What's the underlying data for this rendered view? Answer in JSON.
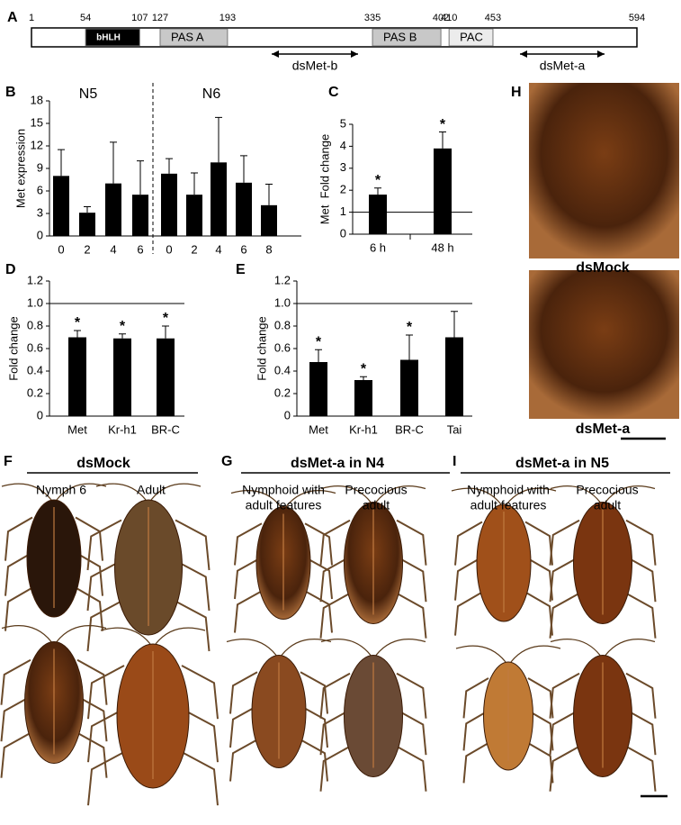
{
  "panels": {
    "A": "A",
    "F": "F",
    "G": "G",
    "H": "H",
    "I": "I"
  },
  "protein": {
    "start": 1,
    "end": 594,
    "domains": [
      {
        "name": "bHLH",
        "start": 54,
        "end": 107
      },
      {
        "name": "PAS A",
        "start": 127,
        "end": 193
      },
      {
        "name": "PAS B",
        "start": 335,
        "end": 402
      },
      {
        "name": "PAC",
        "start": 410,
        "end": 453
      }
    ],
    "constructs": [
      "dsMet-b",
      "dsMet-a"
    ]
  },
  "chart_data": [
    {
      "type": "bar",
      "panel": "B",
      "ylabel": "Met expression",
      "color": "#000000",
      "ylim": [
        0,
        18
      ],
      "yticks": [
        0,
        3,
        6,
        9,
        12,
        15,
        18
      ],
      "groups": [
        {
          "title": "N5",
          "categories": [
            "0",
            "2",
            "4",
            "6"
          ],
          "values": [
            8.0,
            3.1,
            7.0,
            5.5
          ],
          "errors": [
            3.5,
            0.8,
            5.5,
            4.5
          ]
        },
        {
          "title": "N6",
          "categories": [
            "0",
            "2",
            "4",
            "6",
            "8"
          ],
          "values": [
            8.3,
            5.5,
            9.8,
            7.1,
            4.1
          ],
          "errors": [
            2.0,
            2.9,
            6.0,
            3.6,
            2.8
          ]
        }
      ]
    },
    {
      "type": "bar",
      "panel": "C",
      "ylabel": "Met  Fold change",
      "color": "#000000",
      "ylim": [
        0,
        5
      ],
      "yticks": [
        0,
        1,
        2,
        3,
        4,
        5
      ],
      "reference_line": 1,
      "categories": [
        "6 h",
        "48 h"
      ],
      "values": [
        1.8,
        3.9
      ],
      "errors": [
        0.3,
        0.75
      ],
      "significance": [
        "*",
        "*"
      ]
    },
    {
      "type": "bar",
      "panel": "D",
      "ylabel": "Fold change",
      "color": "#000000",
      "ylim": [
        0,
        1.2
      ],
      "yticks": [
        0,
        0.2,
        0.4,
        0.6,
        0.8,
        {
          "value": 1,
          "label": "1.0"
        },
        1.2
      ],
      "reference_line": 1,
      "categories": [
        "Met",
        "Kr-h1",
        "BR-C"
      ],
      "values": [
        0.7,
        0.69,
        0.69
      ],
      "errors": [
        0.06,
        0.04,
        0.11
      ],
      "significance": [
        "*",
        "*",
        "*"
      ]
    },
    {
      "type": "bar",
      "panel": "E",
      "ylabel": "Fold change",
      "color": "#000000",
      "ylim": [
        0,
        1.2
      ],
      "yticks": [
        0,
        0.2,
        0.4,
        0.6,
        0.8,
        {
          "value": 1,
          "label": "1.0"
        },
        1.2
      ],
      "reference_line": 1,
      "categories": [
        "Met",
        "Kr-h1",
        "BR-C",
        "Tai"
      ],
      "values": [
        0.48,
        0.32,
        0.5,
        0.7
      ],
      "errors": [
        0.11,
        0.03,
        0.22,
        0.23
      ],
      "significance": [
        "*",
        "*",
        "*",
        null
      ]
    }
  ],
  "photos": {
    "F": {
      "title": "dsMock",
      "columns": [
        [
          "Nymph 6"
        ],
        [
          "Adult"
        ]
      ]
    },
    "G": {
      "title": "dsMet-a in N4",
      "columns": [
        [
          "Nymphoid with",
          "adult features"
        ],
        [
          "Precocious",
          "adult"
        ]
      ]
    },
    "I": {
      "title": "dsMet-a in N5",
      "columns": [
        [
          "Nymphoid with",
          "adult features"
        ],
        [
          "Precocious",
          "adult"
        ]
      ]
    },
    "H": {
      "labels": [
        "dsMock",
        "dsMet-a"
      ]
    }
  }
}
